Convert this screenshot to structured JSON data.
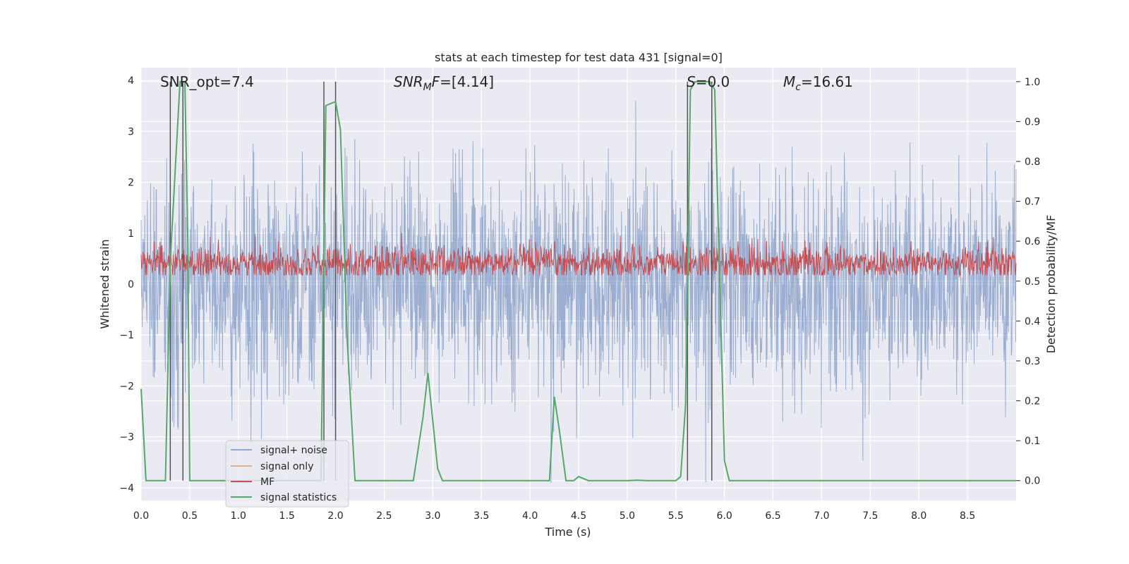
{
  "chart_data": {
    "type": "line",
    "title": "stats at each timestep for test data 431 [signal=0]",
    "xlabel": "Time (s)",
    "ylabel": "Whitened strain",
    "y2label": "Detection probability/MF",
    "xlim": [
      0,
      9
    ],
    "ylim": [
      -4.25,
      4.25
    ],
    "y2lim": [
      -0.05,
      1.035
    ],
    "xticks": [
      "0.0",
      "0.5",
      "1.0",
      "1.5",
      "2.0",
      "2.5",
      "3.0",
      "3.5",
      "4.0",
      "4.5",
      "5.0",
      "5.5",
      "6.0",
      "6.5",
      "7.0",
      "7.5",
      "8.0",
      "8.5"
    ],
    "yticks": [
      "4",
      "3",
      "2",
      "1",
      "0",
      "−1",
      "−2",
      "−3",
      "−4"
    ],
    "y2ticks": [
      "1.0",
      "0.9",
      "0.8",
      "0.7",
      "0.6",
      "0.5",
      "0.4",
      "0.3",
      "0.2",
      "0.1",
      "0.0"
    ],
    "grid": true,
    "legend_position": "lower-left",
    "colors": {
      "signal_noise": "#4c72b0",
      "signal_only": "#dd8452",
      "mf": "#c44e52",
      "stats": "#55a868",
      "vline": "#555555",
      "background": "#eaeaf2"
    },
    "series": [
      {
        "name": "signal+ noise",
        "description": "whitened noise, amplitude roughly within -4 to 3.7"
      },
      {
        "name": "signal only",
        "x": [],
        "y": []
      },
      {
        "name": "MF",
        "description": "matched-filter output on right axis, roughly between 0.52 and 0.62"
      },
      {
        "name": "signal statistics",
        "x": [
          0.0,
          0.05,
          0.25,
          0.3,
          0.4,
          0.45,
          0.48,
          0.5,
          1.0,
          1.85,
          1.9,
          2.0,
          2.05,
          2.12,
          2.2,
          2.8,
          2.9,
          2.95,
          3.05,
          3.1,
          4.0,
          4.2,
          4.25,
          4.3,
          4.37,
          4.45,
          4.5,
          4.6,
          5.0,
          5.1,
          5.2,
          5.5,
          5.55,
          5.6,
          5.65,
          5.7,
          5.75,
          5.85,
          5.9,
          6.0,
          6.05,
          8.0,
          9.0
        ],
        "y": [
          0.23,
          0.0,
          0.0,
          0.55,
          1.0,
          1.0,
          0.6,
          0.0,
          0.0,
          0.0,
          0.94,
          0.95,
          0.88,
          0.35,
          0.0,
          0.0,
          0.16,
          0.27,
          0.03,
          0.0,
          0.0,
          0.0,
          0.21,
          0.13,
          0.0,
          0.0,
          0.01,
          0.0,
          0.0,
          0.001,
          0.0,
          0.0,
          0.01,
          0.19,
          0.98,
          1.0,
          1.0,
          1.0,
          0.98,
          0.05,
          0.0,
          0.0,
          0.0
        ]
      }
    ],
    "vlines": [
      0.3,
      0.43,
      1.88,
      2.0,
      5.62,
      5.87
    ],
    "annotations": {
      "snr_opt": "SNR_opt=7.4",
      "snr_mf_prefix": "SNR",
      "snr_mf_sub": "M",
      "snr_mf_rest": "F",
      "snr_mf_value": "=[4.14]",
      "s_label": "S",
      "s_value": "=0.0",
      "mc_label": "M",
      "mc_sub": "c",
      "mc_value": "=16.61"
    },
    "legend": [
      "signal+ noise",
      "signal only",
      "MF",
      "signal statistics"
    ]
  }
}
